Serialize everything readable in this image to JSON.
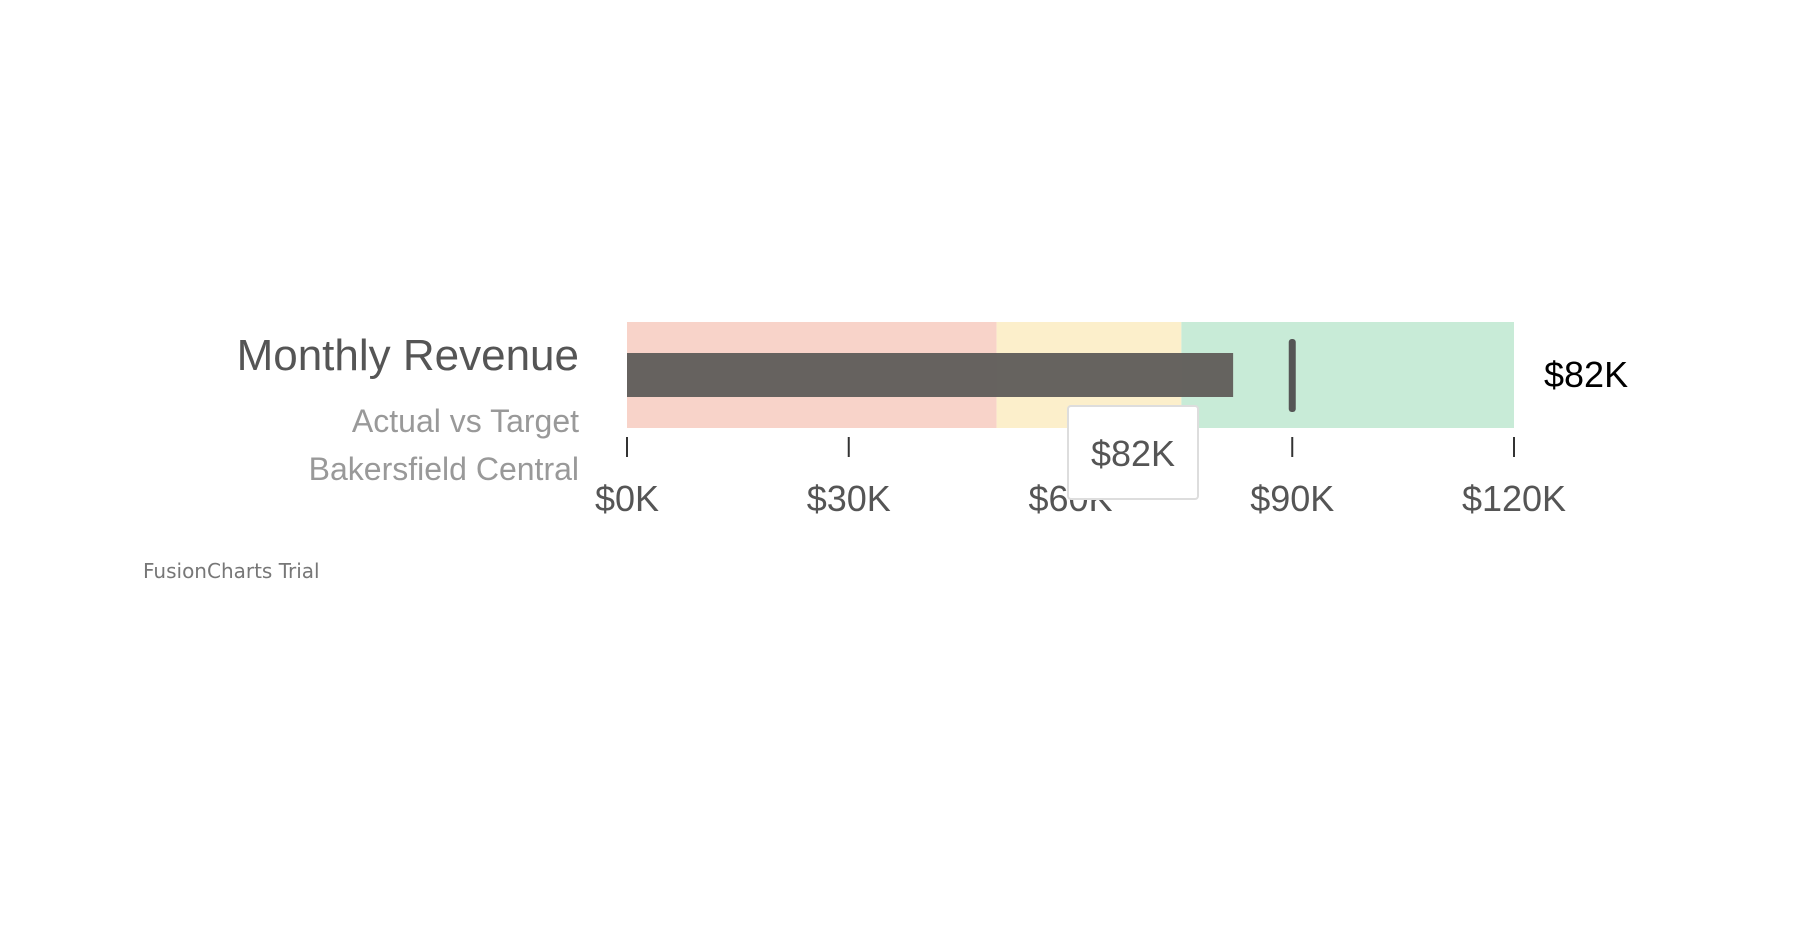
{
  "chart_data": {
    "type": "bullet",
    "title": "Monthly Revenue",
    "subtitles": [
      "Actual vs Target",
      "Bakersfield Central"
    ],
    "value": 82,
    "value_label": "$82K",
    "target": 90,
    "axis": {
      "min": 0,
      "max": 120,
      "ticks": [
        0,
        30,
        60,
        90,
        120
      ],
      "tick_labels": [
        "$0K",
        "$30K",
        "$60K",
        "$90K",
        "$120K"
      ],
      "prefix": "$",
      "suffix": "K"
    },
    "color_ranges": [
      {
        "min": 0,
        "max": 50,
        "color": "#F8D3C9"
      },
      {
        "min": 50,
        "max": 75,
        "color": "#FCEFCB"
      },
      {
        "min": 75,
        "max": 120,
        "color": "#C8EBD7"
      }
    ],
    "plot_color": "#615E5B",
    "target_color": "#555555",
    "tooltip": {
      "visible": true,
      "text": "$82K"
    }
  },
  "watermark": "FusionCharts Trial"
}
